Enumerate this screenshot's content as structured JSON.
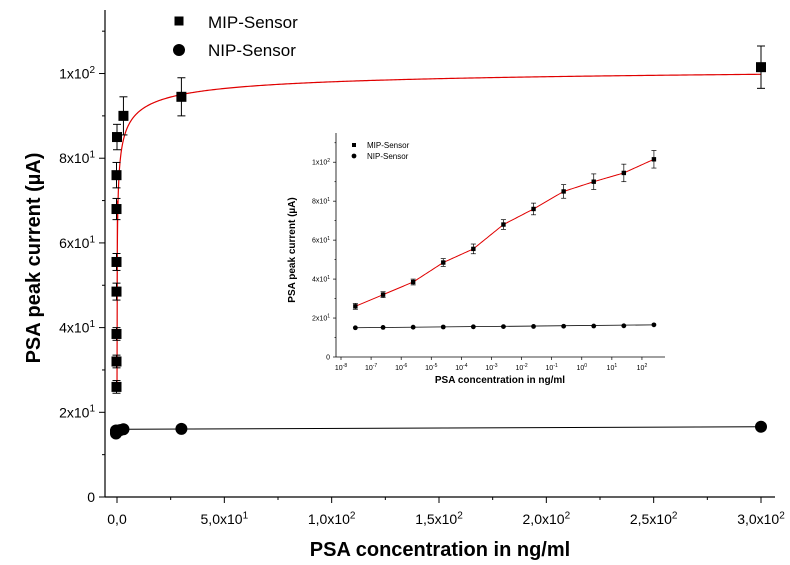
{
  "chart_data": [
    {
      "id": "main",
      "type": "scatter",
      "xlabel": "PSA concentration in ng/ml",
      "ylabel": "PSA peak current (µA)",
      "xlim": [
        -5,
        305
      ],
      "ylim": [
        0,
        115
      ],
      "x_ticks": [
        {
          "value": 0,
          "label": "0,0"
        },
        {
          "value": 50,
          "label": "5,0x10",
          "exp": "1"
        },
        {
          "value": 100,
          "label": "1,0x10",
          "exp": "2"
        },
        {
          "value": 150,
          "label": "1,5x10",
          "exp": "2"
        },
        {
          "value": 200,
          "label": "2,0x10",
          "exp": "2"
        },
        {
          "value": 250,
          "label": "2,5x10",
          "exp": "2"
        },
        {
          "value": 300,
          "label": "3,0x10",
          "exp": "2"
        }
      ],
      "y_ticks": [
        {
          "value": 0,
          "label": "0"
        },
        {
          "value": 20,
          "label": "2x10",
          "exp": "1"
        },
        {
          "value": 40,
          "label": "4x10",
          "exp": "1"
        },
        {
          "value": 60,
          "label": "6x10",
          "exp": "1"
        },
        {
          "value": 80,
          "label": "8x10",
          "exp": "1"
        },
        {
          "value": 100,
          "label": "1x10",
          "exp": "2"
        }
      ],
      "legend_position": "top-left",
      "series": [
        {
          "name": "MIP-Sensor",
          "marker": "square",
          "color": "#000000",
          "fit_color": "#e00000",
          "x": [
            1e-07,
            1e-06,
            1e-05,
            0.0001,
            0.001,
            0.01,
            0.1,
            1,
            3,
            30,
            300
          ],
          "y": [
            26,
            32,
            38.5,
            48.5,
            55.5,
            68,
            76,
            85,
            90,
            94.5,
            101.5
          ],
          "err": [
            1.5,
            1.5,
            1.5,
            2,
            2,
            2.5,
            3,
            3,
            4.5,
            4.5,
            5
          ]
        },
        {
          "name": "NIP-Sensor",
          "marker": "circle",
          "color": "#000000",
          "fit_color": "#000000",
          "x": [
            1e-07,
            1e-05,
            0.001,
            0.1,
            1,
            3,
            30,
            300
          ],
          "y": [
            15,
            15.3,
            15.5,
            15.7,
            15.8,
            16,
            16.1,
            16.6
          ],
          "err": [
            0,
            0,
            0,
            0,
            0,
            0,
            0,
            0
          ]
        }
      ]
    },
    {
      "id": "inset",
      "type": "scatter",
      "x_scale": "log",
      "xlabel": "PSA concentration in ng/ml",
      "ylabel": "PSA peak current (µA)",
      "xlim": [
        1e-08,
        1000
      ],
      "ylim": [
        0,
        115
      ],
      "x_ticks": [
        {
          "value": 1e-08,
          "label": "10",
          "exp": "-8"
        },
        {
          "value": 1e-07,
          "label": "10",
          "exp": "-7"
        },
        {
          "value": 1e-06,
          "label": "10",
          "exp": "-6"
        },
        {
          "value": 1e-05,
          "label": "10",
          "exp": "-5"
        },
        {
          "value": 0.0001,
          "label": "10",
          "exp": "-4"
        },
        {
          "value": 0.001,
          "label": "10",
          "exp": "-3"
        },
        {
          "value": 0.01,
          "label": "10",
          "exp": "-2"
        },
        {
          "value": 0.1,
          "label": "10",
          "exp": "-1"
        },
        {
          "value": 1,
          "label": "10",
          "exp": "0"
        },
        {
          "value": 10,
          "label": "10",
          "exp": "1"
        },
        {
          "value": 100,
          "label": "10",
          "exp": "2"
        }
      ],
      "y_ticks": [
        {
          "value": 0,
          "label": "0"
        },
        {
          "value": 20,
          "label": "2x10",
          "exp": "1"
        },
        {
          "value": 40,
          "label": "4x10",
          "exp": "1"
        },
        {
          "value": 60,
          "label": "6x10",
          "exp": "1"
        },
        {
          "value": 80,
          "label": "8x10",
          "exp": "1"
        },
        {
          "value": 100,
          "label": "1x10",
          "exp": "2"
        }
      ],
      "legend_position": "top-left",
      "series": [
        {
          "name": "MIP-Sensor",
          "marker": "square",
          "color": "#000000",
          "fit_color": "#e00000",
          "x": [
            3e-08,
            2.5e-07,
            2.5e-06,
            2.5e-05,
            0.00025,
            0.0025,
            0.025,
            0.25,
            2.5,
            25,
            250
          ],
          "y": [
            26,
            32,
            38.5,
            48.5,
            55.5,
            68,
            76,
            85,
            90,
            94.5,
            101.5
          ],
          "err": [
            1.5,
            1.5,
            1.5,
            2,
            2.5,
            2.5,
            3,
            3.5,
            4,
            4.5,
            4.5
          ]
        },
        {
          "name": "NIP-Sensor",
          "marker": "circle",
          "color": "#000000",
          "fit_color": "#000000",
          "x": [
            3e-08,
            2.5e-07,
            2.5e-06,
            2.5e-05,
            0.00025,
            0.0025,
            0.025,
            0.25,
            2.5,
            25,
            250
          ],
          "y": [
            15,
            15.2,
            15.3,
            15.4,
            15.5,
            15.6,
            15.7,
            15.8,
            15.9,
            16,
            16.5
          ],
          "err": [
            0,
            0,
            0,
            0,
            0,
            0,
            0,
            0,
            0,
            0,
            0
          ]
        }
      ]
    }
  ]
}
